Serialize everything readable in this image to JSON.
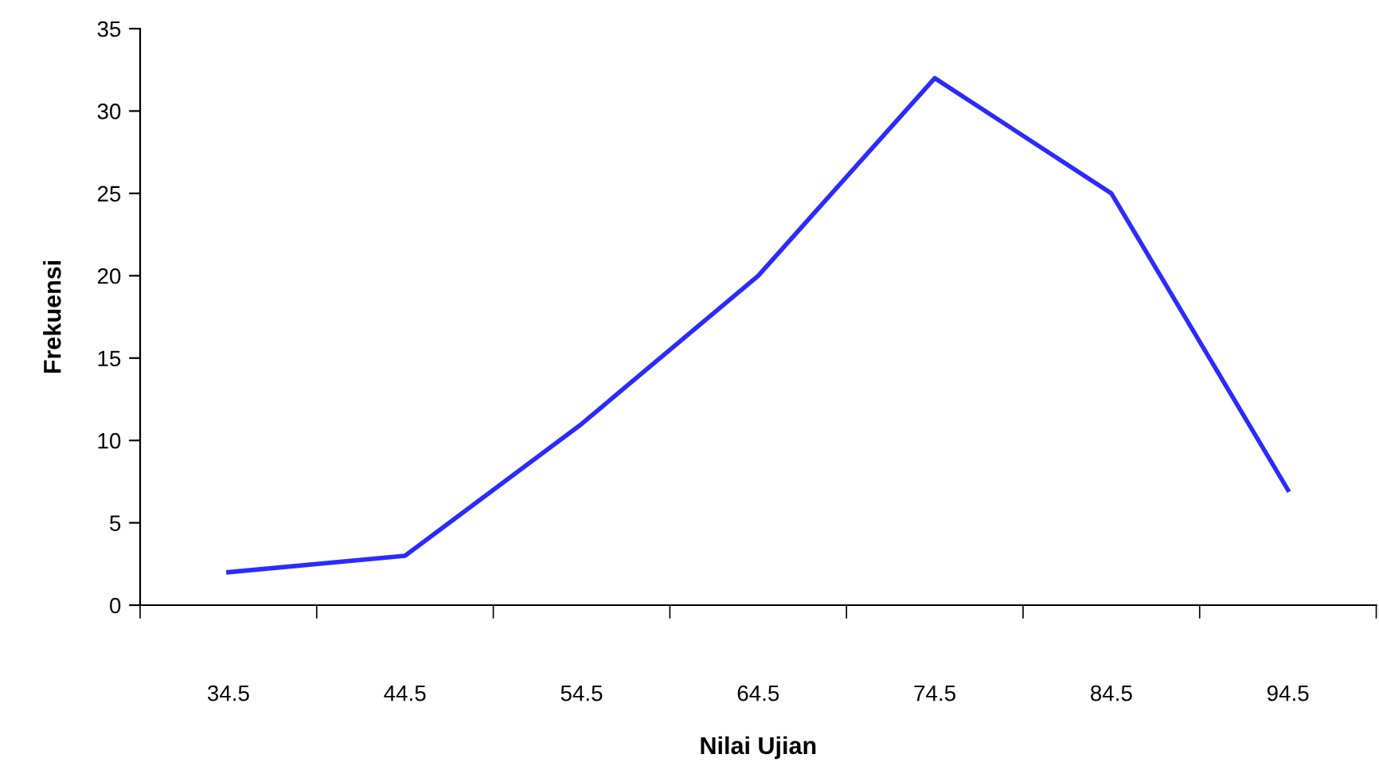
{
  "chart_data": {
    "type": "line",
    "xlabel": "Nilai Ujian",
    "ylabel": "Frekuensi",
    "categories": [
      "34.5",
      "44.5",
      "54.5",
      "64.5",
      "74.5",
      "84.5",
      "94.5"
    ],
    "series": [
      {
        "color": "#2b2bff",
        "values": [
          2,
          3,
          11,
          20,
          32,
          25,
          7
        ]
      }
    ],
    "ylim": [
      0,
      35
    ],
    "yticks": [
      0,
      5,
      10,
      15,
      20,
      25,
      30,
      35
    ],
    "grid": false,
    "marker": "none",
    "line_style": "solid"
  }
}
